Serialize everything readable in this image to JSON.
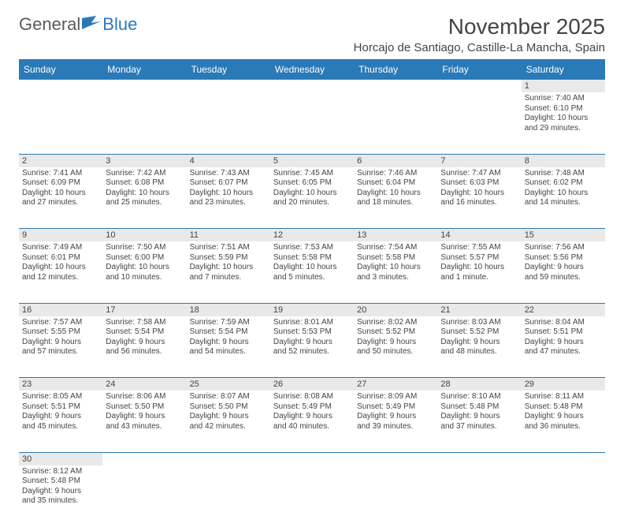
{
  "logo": {
    "general": "General",
    "blue": "Blue"
  },
  "title": "November 2025",
  "location": "Horcajo de Santiago, Castille-La Mancha, Spain",
  "colors": {
    "header_bg": "#2a7ab8",
    "header_text": "#ffffff",
    "daynum_bg": "#e9e9e9",
    "border": "#2a7ab8",
    "body_text": "#444444",
    "logo_general": "#5b5b5b",
    "logo_blue": "#2a7ab8"
  },
  "day_headers": [
    "Sunday",
    "Monday",
    "Tuesday",
    "Wednesday",
    "Thursday",
    "Friday",
    "Saturday"
  ],
  "weeks": [
    {
      "nums": [
        "",
        "",
        "",
        "",
        "",
        "",
        "1"
      ],
      "cells": [
        null,
        null,
        null,
        null,
        null,
        null,
        {
          "sunrise": "Sunrise: 7:40 AM",
          "sunset": "Sunset: 6:10 PM",
          "d1": "Daylight: 10 hours",
          "d2": "and 29 minutes."
        }
      ]
    },
    {
      "nums": [
        "2",
        "3",
        "4",
        "5",
        "6",
        "7",
        "8"
      ],
      "cells": [
        {
          "sunrise": "Sunrise: 7:41 AM",
          "sunset": "Sunset: 6:09 PM",
          "d1": "Daylight: 10 hours",
          "d2": "and 27 minutes."
        },
        {
          "sunrise": "Sunrise: 7:42 AM",
          "sunset": "Sunset: 6:08 PM",
          "d1": "Daylight: 10 hours",
          "d2": "and 25 minutes."
        },
        {
          "sunrise": "Sunrise: 7:43 AM",
          "sunset": "Sunset: 6:07 PM",
          "d1": "Daylight: 10 hours",
          "d2": "and 23 minutes."
        },
        {
          "sunrise": "Sunrise: 7:45 AM",
          "sunset": "Sunset: 6:05 PM",
          "d1": "Daylight: 10 hours",
          "d2": "and 20 minutes."
        },
        {
          "sunrise": "Sunrise: 7:46 AM",
          "sunset": "Sunset: 6:04 PM",
          "d1": "Daylight: 10 hours",
          "d2": "and 18 minutes."
        },
        {
          "sunrise": "Sunrise: 7:47 AM",
          "sunset": "Sunset: 6:03 PM",
          "d1": "Daylight: 10 hours",
          "d2": "and 16 minutes."
        },
        {
          "sunrise": "Sunrise: 7:48 AM",
          "sunset": "Sunset: 6:02 PM",
          "d1": "Daylight: 10 hours",
          "d2": "and 14 minutes."
        }
      ]
    },
    {
      "nums": [
        "9",
        "10",
        "11",
        "12",
        "13",
        "14",
        "15"
      ],
      "cells": [
        {
          "sunrise": "Sunrise: 7:49 AM",
          "sunset": "Sunset: 6:01 PM",
          "d1": "Daylight: 10 hours",
          "d2": "and 12 minutes."
        },
        {
          "sunrise": "Sunrise: 7:50 AM",
          "sunset": "Sunset: 6:00 PM",
          "d1": "Daylight: 10 hours",
          "d2": "and 10 minutes."
        },
        {
          "sunrise": "Sunrise: 7:51 AM",
          "sunset": "Sunset: 5:59 PM",
          "d1": "Daylight: 10 hours",
          "d2": "and 7 minutes."
        },
        {
          "sunrise": "Sunrise: 7:53 AM",
          "sunset": "Sunset: 5:58 PM",
          "d1": "Daylight: 10 hours",
          "d2": "and 5 minutes."
        },
        {
          "sunrise": "Sunrise: 7:54 AM",
          "sunset": "Sunset: 5:58 PM",
          "d1": "Daylight: 10 hours",
          "d2": "and 3 minutes."
        },
        {
          "sunrise": "Sunrise: 7:55 AM",
          "sunset": "Sunset: 5:57 PM",
          "d1": "Daylight: 10 hours",
          "d2": "and 1 minute."
        },
        {
          "sunrise": "Sunrise: 7:56 AM",
          "sunset": "Sunset: 5:56 PM",
          "d1": "Daylight: 9 hours",
          "d2": "and 59 minutes."
        }
      ]
    },
    {
      "nums": [
        "16",
        "17",
        "18",
        "19",
        "20",
        "21",
        "22"
      ],
      "cells": [
        {
          "sunrise": "Sunrise: 7:57 AM",
          "sunset": "Sunset: 5:55 PM",
          "d1": "Daylight: 9 hours",
          "d2": "and 57 minutes."
        },
        {
          "sunrise": "Sunrise: 7:58 AM",
          "sunset": "Sunset: 5:54 PM",
          "d1": "Daylight: 9 hours",
          "d2": "and 56 minutes."
        },
        {
          "sunrise": "Sunrise: 7:59 AM",
          "sunset": "Sunset: 5:54 PM",
          "d1": "Daylight: 9 hours",
          "d2": "and 54 minutes."
        },
        {
          "sunrise": "Sunrise: 8:01 AM",
          "sunset": "Sunset: 5:53 PM",
          "d1": "Daylight: 9 hours",
          "d2": "and 52 minutes."
        },
        {
          "sunrise": "Sunrise: 8:02 AM",
          "sunset": "Sunset: 5:52 PM",
          "d1": "Daylight: 9 hours",
          "d2": "and 50 minutes."
        },
        {
          "sunrise": "Sunrise: 8:03 AM",
          "sunset": "Sunset: 5:52 PM",
          "d1": "Daylight: 9 hours",
          "d2": "and 48 minutes."
        },
        {
          "sunrise": "Sunrise: 8:04 AM",
          "sunset": "Sunset: 5:51 PM",
          "d1": "Daylight: 9 hours",
          "d2": "and 47 minutes."
        }
      ]
    },
    {
      "nums": [
        "23",
        "24",
        "25",
        "26",
        "27",
        "28",
        "29"
      ],
      "cells": [
        {
          "sunrise": "Sunrise: 8:05 AM",
          "sunset": "Sunset: 5:51 PM",
          "d1": "Daylight: 9 hours",
          "d2": "and 45 minutes."
        },
        {
          "sunrise": "Sunrise: 8:06 AM",
          "sunset": "Sunset: 5:50 PM",
          "d1": "Daylight: 9 hours",
          "d2": "and 43 minutes."
        },
        {
          "sunrise": "Sunrise: 8:07 AM",
          "sunset": "Sunset: 5:50 PM",
          "d1": "Daylight: 9 hours",
          "d2": "and 42 minutes."
        },
        {
          "sunrise": "Sunrise: 8:08 AM",
          "sunset": "Sunset: 5:49 PM",
          "d1": "Daylight: 9 hours",
          "d2": "and 40 minutes."
        },
        {
          "sunrise": "Sunrise: 8:09 AM",
          "sunset": "Sunset: 5:49 PM",
          "d1": "Daylight: 9 hours",
          "d2": "and 39 minutes."
        },
        {
          "sunrise": "Sunrise: 8:10 AM",
          "sunset": "Sunset: 5:48 PM",
          "d1": "Daylight: 9 hours",
          "d2": "and 37 minutes."
        },
        {
          "sunrise": "Sunrise: 8:11 AM",
          "sunset": "Sunset: 5:48 PM",
          "d1": "Daylight: 9 hours",
          "d2": "and 36 minutes."
        }
      ]
    },
    {
      "nums": [
        "30",
        "",
        "",
        "",
        "",
        "",
        ""
      ],
      "cells": [
        {
          "sunrise": "Sunrise: 8:12 AM",
          "sunset": "Sunset: 5:48 PM",
          "d1": "Daylight: 9 hours",
          "d2": "and 35 minutes."
        },
        null,
        null,
        null,
        null,
        null,
        null
      ]
    }
  ]
}
